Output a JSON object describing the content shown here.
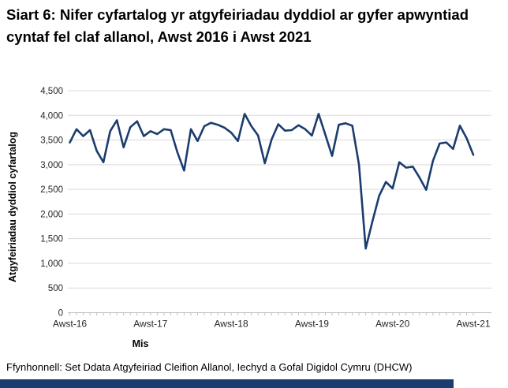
{
  "page": {
    "source": "Ffynhonnell: Set Ddata Atgyfeiriad Cleifion Allanol, Iechyd a Gofal Digidol Cymru (DHCW)",
    "accent_color": "#1b3c6e"
  },
  "chart_data": {
    "type": "line",
    "title": "Siart 6: Nifer cyfartalog yr atgyfeiriadau dyddiol ar gyfer apwyntiad cyntaf fel claf allanol, Awst 2016 i Awst 2021",
    "xlabel": "Mis",
    "ylabel": "Atgyfeiriadau dyddiol cyfartalog",
    "ylim": [
      0,
      4500
    ],
    "y_tick_values": [
      0,
      500,
      1000,
      1500,
      2000,
      2500,
      3000,
      3500,
      4000,
      4500
    ],
    "y_tick_labels": [
      "0",
      "500",
      "1,000",
      "1,500",
      "2,000",
      "2,500",
      "3,000",
      "3,500",
      "4,000",
      "4,500"
    ],
    "x_tick_labels": [
      "Awst-16",
      "Awst-17",
      "Awst-18",
      "Awst-19",
      "Awst-20",
      "Awst-21"
    ],
    "x_tick_month_indices": [
      0,
      12,
      24,
      36,
      48,
      60
    ],
    "grid": "horizontal",
    "legend": "none",
    "line_color": "#1b3c6e",
    "grid_color": "#d9d9d9",
    "axis_color": "#bfbfbf",
    "tick_text_color": "#262626",
    "series": [
      {
        "name": "Atgyfeiriadau dyddiol cyfartalog",
        "period": "Awst 2016 i Awst 2021 (misol)",
        "values": [
          3450,
          3720,
          3580,
          3700,
          3280,
          3050,
          3680,
          3900,
          3350,
          3760,
          3880,
          3580,
          3680,
          3620,
          3720,
          3700,
          3250,
          2880,
          3720,
          3480,
          3780,
          3850,
          3810,
          3750,
          3650,
          3480,
          4030,
          3780,
          3590,
          3030,
          3510,
          3820,
          3690,
          3700,
          3800,
          3720,
          3590,
          4030,
          3610,
          3180,
          3810,
          3840,
          3790,
          3000,
          1300,
          1850,
          2370,
          2650,
          2520,
          3050,
          2940,
          2960,
          2740,
          2490,
          3080,
          3430,
          3450,
          3320,
          3790,
          3540,
          3200
        ]
      }
    ]
  }
}
